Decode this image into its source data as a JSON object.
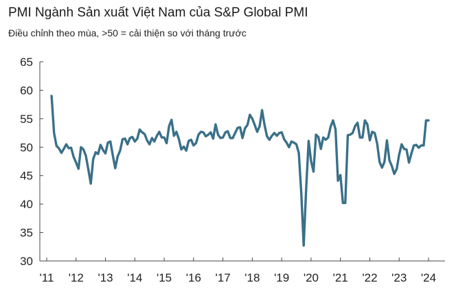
{
  "chart_data": {
    "type": "line",
    "title": "PMI Ngành Sản xuất Việt Nam của S&P Global PMI",
    "subtitle": "Điều chỉnh theo mùa, >50 = cải thiện so với tháng trước",
    "xlabel": "",
    "ylabel": "",
    "ylim": [
      30,
      65
    ],
    "yticks": [
      30,
      35,
      40,
      45,
      50,
      55,
      60,
      65
    ],
    "xtick_labels": [
      "'11",
      "'12",
      "'13",
      "'14",
      "'15",
      "'16",
      "'17",
      "'18",
      "'19",
      "'20",
      "'21",
      "'22",
      "'23",
      "'24"
    ],
    "grid": false,
    "line_color": "#3a7089",
    "series": [
      {
        "name": "PMI",
        "start": "2011-03",
        "values": [
          59.0,
          52.5,
          50.2,
          49.8,
          49.0,
          49.7,
          50.5,
          49.8,
          49.9,
          48.3,
          47.3,
          46.2,
          50.0,
          49.6,
          48.5,
          46.1,
          43.6,
          47.9,
          49.1,
          48.8,
          50.4,
          49.5,
          48.9,
          50.8,
          51.0,
          48.6,
          46.3,
          48.4,
          49.4,
          51.4,
          51.5,
          50.5,
          51.6,
          51.8,
          51.0,
          51.5,
          53.1,
          52.6,
          52.3,
          51.2,
          50.5,
          51.6,
          51.0,
          52.0,
          52.7,
          51.7,
          51.7,
          50.7,
          53.7,
          54.8,
          52.0,
          52.7,
          51.4,
          49.6,
          50.1,
          49.4,
          51.1,
          51.3,
          50.3,
          50.7,
          52.2,
          52.7,
          52.6,
          51.9,
          52.2,
          52.6,
          51.5,
          54.0,
          52.2,
          51.6,
          51.7,
          52.6,
          52.8,
          51.6,
          51.6,
          52.5,
          53.4,
          53.5,
          51.6,
          53.3,
          53.9,
          55.7,
          55.0,
          53.9,
          52.7,
          53.7,
          56.5,
          53.9,
          51.9,
          51.3,
          52.0,
          52.5,
          52.0,
          52.5,
          52.6,
          51.4,
          50.8,
          50.0,
          51.0,
          50.8,
          50.5,
          49.0,
          41.9,
          32.7,
          42.7,
          51.1,
          47.6,
          45.7,
          52.2,
          51.8,
          49.7,
          51.7,
          51.3,
          51.7,
          53.6,
          54.7,
          53.1,
          44.1,
          45.1,
          40.2,
          40.2,
          52.1,
          52.2,
          52.5,
          53.7,
          54.3,
          51.7,
          51.7,
          54.7,
          54.0,
          51.2,
          52.7,
          52.5,
          50.6,
          47.4,
          46.4,
          47.4,
          51.2,
          47.7,
          46.7,
          45.3,
          46.2,
          48.7,
          50.5,
          49.7,
          49.6,
          47.3,
          48.9,
          50.3,
          50.4,
          49.9,
          50.3,
          50.3,
          54.7,
          54.7
        ]
      }
    ]
  }
}
